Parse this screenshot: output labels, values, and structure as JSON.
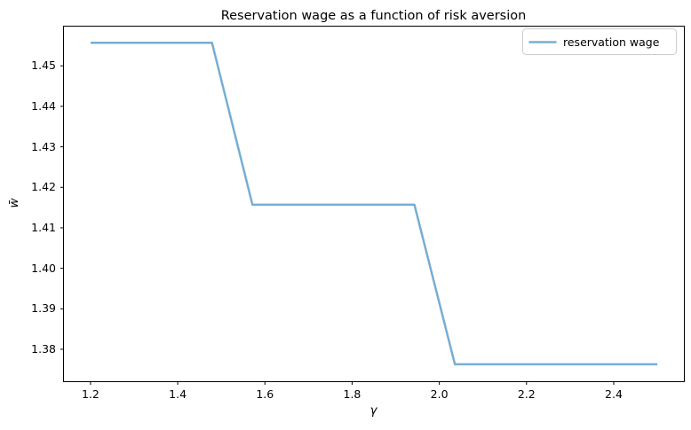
{
  "chart_data": {
    "type": "line",
    "title": "Reservation wage as a function of risk aversion",
    "xlabel": "γ",
    "ylabel": "w̄",
    "series": [
      {
        "name": "reservation wage",
        "color": "#78add2",
        "linewidth": 2.5,
        "x": [
          1.2,
          1.2929,
          1.3857,
          1.4786,
          1.5714,
          1.6643,
          1.7571,
          1.85,
          1.9429,
          2.0357,
          2.1286,
          2.2214,
          2.3143,
          2.4071,
          2.5
        ],
        "y": [
          1.4557,
          1.4557,
          1.4557,
          1.4557,
          1.4157,
          1.4157,
          1.4157,
          1.4157,
          1.4157,
          1.3763,
          1.3763,
          1.3763,
          1.3763,
          1.3763,
          1.3763
        ]
      }
    ],
    "xlim": [
      1.138,
      2.562
    ],
    "ylim": [
      1.372,
      1.4598
    ],
    "xticks": [
      1.2,
      1.4,
      1.6,
      1.8,
      2.0,
      2.2,
      2.4
    ],
    "xtick_labels": [
      "1.2",
      "1.4",
      "1.6",
      "1.8",
      "2.0",
      "2.2",
      "2.4"
    ],
    "yticks": [
      1.38,
      1.39,
      1.4,
      1.41,
      1.42,
      1.43,
      1.44,
      1.45
    ],
    "ytick_labels": [
      "1.38",
      "1.39",
      "1.40",
      "1.41",
      "1.42",
      "1.43",
      "1.44",
      "1.45"
    ],
    "legend": {
      "position": "upper right",
      "entries": [
        "reservation wage"
      ],
      "frame_color": "#cccccc",
      "frame_fill": "#ffffff"
    },
    "grid": false,
    "axes_color": "#000000",
    "background": "#ffffff"
  }
}
